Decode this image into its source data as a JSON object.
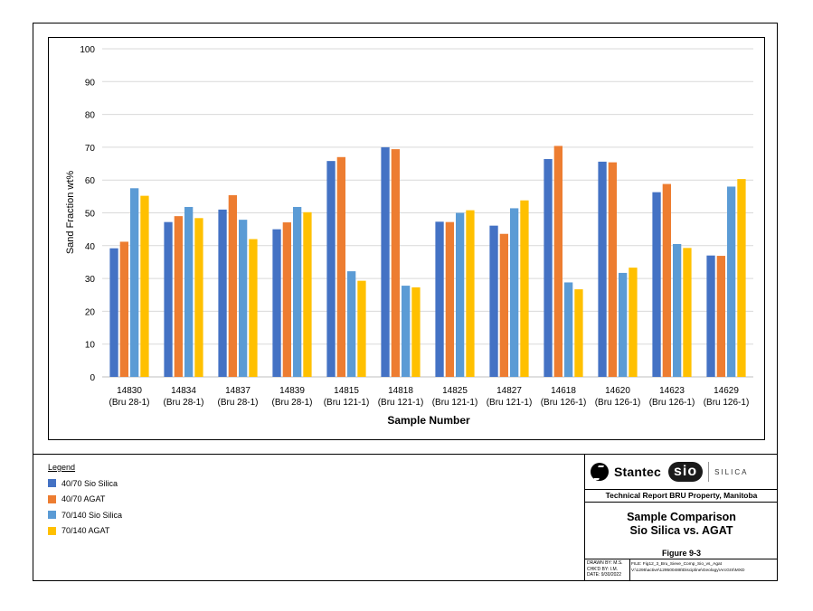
{
  "chart_data": {
    "type": "bar",
    "title": "",
    "xlabel": "Sample Number",
    "ylabel": "Sand Fraction wt%",
    "ylim": [
      0,
      100
    ],
    "yticks": [
      0,
      10,
      20,
      30,
      40,
      50,
      60,
      70,
      80,
      90,
      100
    ],
    "grid": true,
    "categories": [
      [
        "14830",
        "(Bru 28-1)"
      ],
      [
        "14834",
        "(Bru 28-1)"
      ],
      [
        "14837",
        "(Bru 28-1)"
      ],
      [
        "14839",
        "(Bru 28-1)"
      ],
      [
        "14815",
        "(Bru 121-1)"
      ],
      [
        "14818",
        "(Bru 121-1)"
      ],
      [
        "14825",
        "(Bru 121-1)"
      ],
      [
        "14827",
        "(Bru 121-1)"
      ],
      [
        "14618",
        "(Bru 126-1)"
      ],
      [
        "14620",
        "(Bru 126-1)"
      ],
      [
        "14623",
        "(Bru 126-1)"
      ],
      [
        "14629",
        "(Bru 126-1)"
      ]
    ],
    "series": [
      {
        "name": "40/70 Sio Silica",
        "color": "#4472C4",
        "values": [
          39.2,
          47.2,
          51.0,
          45.0,
          65.8,
          70.0,
          47.3,
          46.1,
          66.4,
          65.6,
          56.3,
          37.0
        ]
      },
      {
        "name": "40/70 AGAT",
        "color": "#ED7D31",
        "values": [
          41.2,
          49.0,
          55.4,
          47.1,
          67.0,
          69.4,
          47.2,
          43.6,
          70.4,
          65.4,
          58.8,
          36.9
        ]
      },
      {
        "name": "70/140 Sio Silica",
        "color": "#5B9BD5",
        "values": [
          57.5,
          51.8,
          47.9,
          51.8,
          32.2,
          27.8,
          50.0,
          51.4,
          28.8,
          31.7,
          40.5,
          58.0
        ]
      },
      {
        "name": "70/140 AGAT",
        "color": "#FFC000",
        "values": [
          55.2,
          48.4,
          42.0,
          50.2,
          29.3,
          27.3,
          50.8,
          53.8,
          26.7,
          33.3,
          39.3,
          60.3
        ]
      }
    ],
    "legend_position": "bottom-left"
  },
  "legend": {
    "title": "Legend",
    "items": [
      {
        "label": "40/70 Sio Silica",
        "color": "#4472C4"
      },
      {
        "label": "40/70 AGAT",
        "color": "#ED7D31"
      },
      {
        "label": "70/140 Sio Silica",
        "color": "#5B9BD5"
      },
      {
        "label": "70/140 AGAT",
        "color": "#FFC000"
      }
    ]
  },
  "title_block": {
    "brand": "Stantec",
    "partner_logo": "sio",
    "partner_tag": "SILICA",
    "report": "Technical Report BRU Property, Manitoba",
    "title_line1": "Sample Comparison",
    "title_line2": "Sio Silica vs. AGAT",
    "figure": "Figure 9-3",
    "drawn_by": "DRAWN BY: M.S.",
    "checked_by": "CHK'D BY: I.M.",
    "date": "DATE:  9/30/2022",
    "file": "FILE: Fig12_3_Bru_Sieve_Comp_Sio_vs_Agat",
    "path": "V:\\1295\\active\\129500488\\Discipline\\Geology\\ArcGIS\\MXD"
  }
}
